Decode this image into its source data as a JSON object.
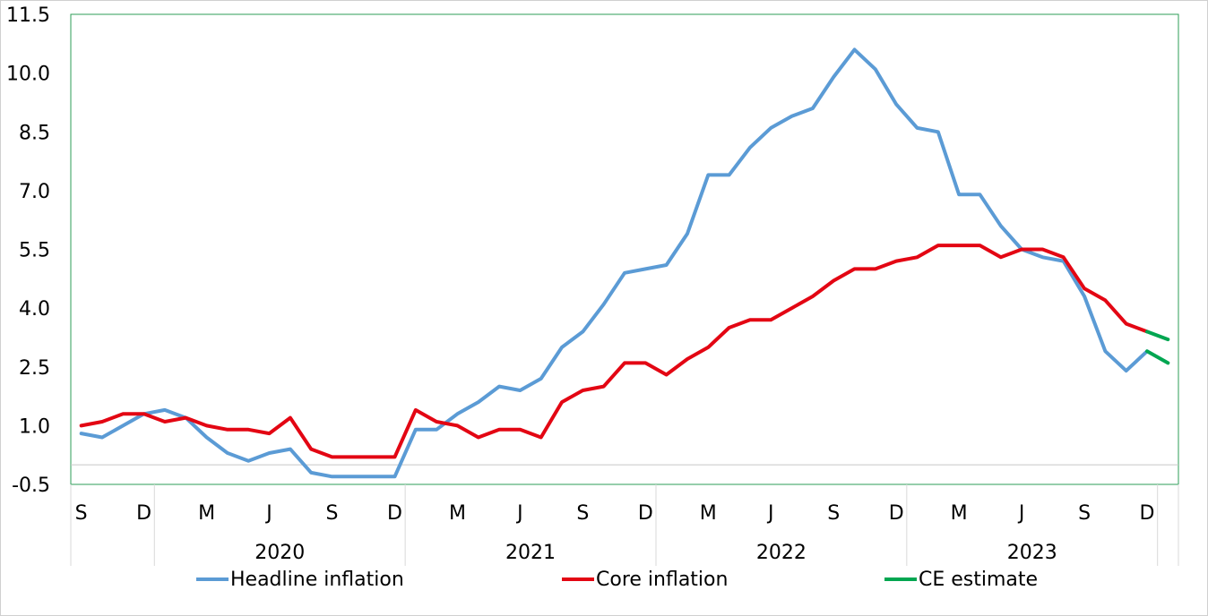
{
  "chart_data": {
    "type": "line",
    "ylim": [
      -0.5,
      11.5
    ],
    "yticks": [
      "11.5",
      "10.0",
      "8.5",
      "7.0",
      "5.5",
      "4.0",
      "2.5",
      "1.0",
      "-0.5"
    ],
    "month_labels": [
      "S",
      "D",
      "M",
      "J",
      "S",
      "D",
      "M",
      "J",
      "S",
      "D",
      "M",
      "J",
      "S",
      "D",
      "M",
      "J",
      "S",
      "D"
    ],
    "year_labels": [
      "2020",
      "2021",
      "2022",
      "2023"
    ],
    "x_start": "2019-09",
    "x": [
      "2019-09",
      "2019-10",
      "2019-11",
      "2019-12",
      "2020-01",
      "2020-02",
      "2020-03",
      "2020-04",
      "2020-05",
      "2020-06",
      "2020-07",
      "2020-08",
      "2020-09",
      "2020-10",
      "2020-11",
      "2020-12",
      "2021-01",
      "2021-02",
      "2021-03",
      "2021-04",
      "2021-05",
      "2021-06",
      "2021-07",
      "2021-08",
      "2021-09",
      "2021-10",
      "2021-11",
      "2021-12",
      "2022-01",
      "2022-02",
      "2022-03",
      "2022-04",
      "2022-05",
      "2022-06",
      "2022-07",
      "2022-08",
      "2022-09",
      "2022-10",
      "2022-11",
      "2022-12",
      "2023-01",
      "2023-02",
      "2023-03",
      "2023-04",
      "2023-05",
      "2023-06",
      "2023-07",
      "2023-08",
      "2023-09",
      "2023-10",
      "2023-11",
      "2023-12",
      "2024-01"
    ],
    "series": [
      {
        "name": "Headline inflation",
        "color": "#5B9BD5",
        "values": [
          0.8,
          0.7,
          1.0,
          1.3,
          1.4,
          1.2,
          0.7,
          0.3,
          0.1,
          0.3,
          0.4,
          -0.2,
          -0.3,
          -0.3,
          -0.3,
          -0.3,
          0.9,
          0.9,
          1.3,
          1.6,
          2.0,
          1.9,
          2.2,
          3.0,
          3.4,
          4.1,
          4.9,
          5.0,
          5.1,
          5.9,
          7.4,
          7.4,
          8.1,
          8.6,
          8.9,
          9.1,
          9.9,
          10.6,
          10.1,
          9.2,
          8.6,
          8.5,
          6.9,
          6.9,
          6.1,
          5.5,
          5.3,
          5.2,
          4.3,
          2.9,
          2.4,
          2.9,
          null
        ]
      },
      {
        "name": "Core inflation",
        "color": "#E30613",
        "values": [
          1.0,
          1.1,
          1.3,
          1.3,
          1.1,
          1.2,
          1.0,
          0.9,
          0.9,
          0.8,
          1.2,
          0.4,
          0.2,
          0.2,
          0.2,
          0.2,
          1.4,
          1.1,
          1.0,
          0.7,
          0.9,
          0.9,
          0.7,
          1.6,
          1.9,
          2.0,
          2.6,
          2.6,
          2.3,
          2.7,
          3.0,
          3.5,
          3.7,
          3.7,
          4.0,
          4.3,
          4.7,
          5.0,
          5.0,
          5.2,
          5.3,
          5.6,
          5.6,
          5.6,
          5.3,
          5.5,
          5.5,
          5.3,
          4.5,
          4.2,
          3.6,
          3.4,
          null
        ]
      },
      {
        "name": "CE estimate",
        "color": "#00A651",
        "segments": [
          {
            "x": [
              "2023-12",
              "2024-01"
            ],
            "values": [
              2.9,
              2.6
            ]
          },
          {
            "x": [
              "2023-12",
              "2024-01"
            ],
            "values": [
              3.4,
              3.2
            ]
          }
        ]
      }
    ]
  }
}
